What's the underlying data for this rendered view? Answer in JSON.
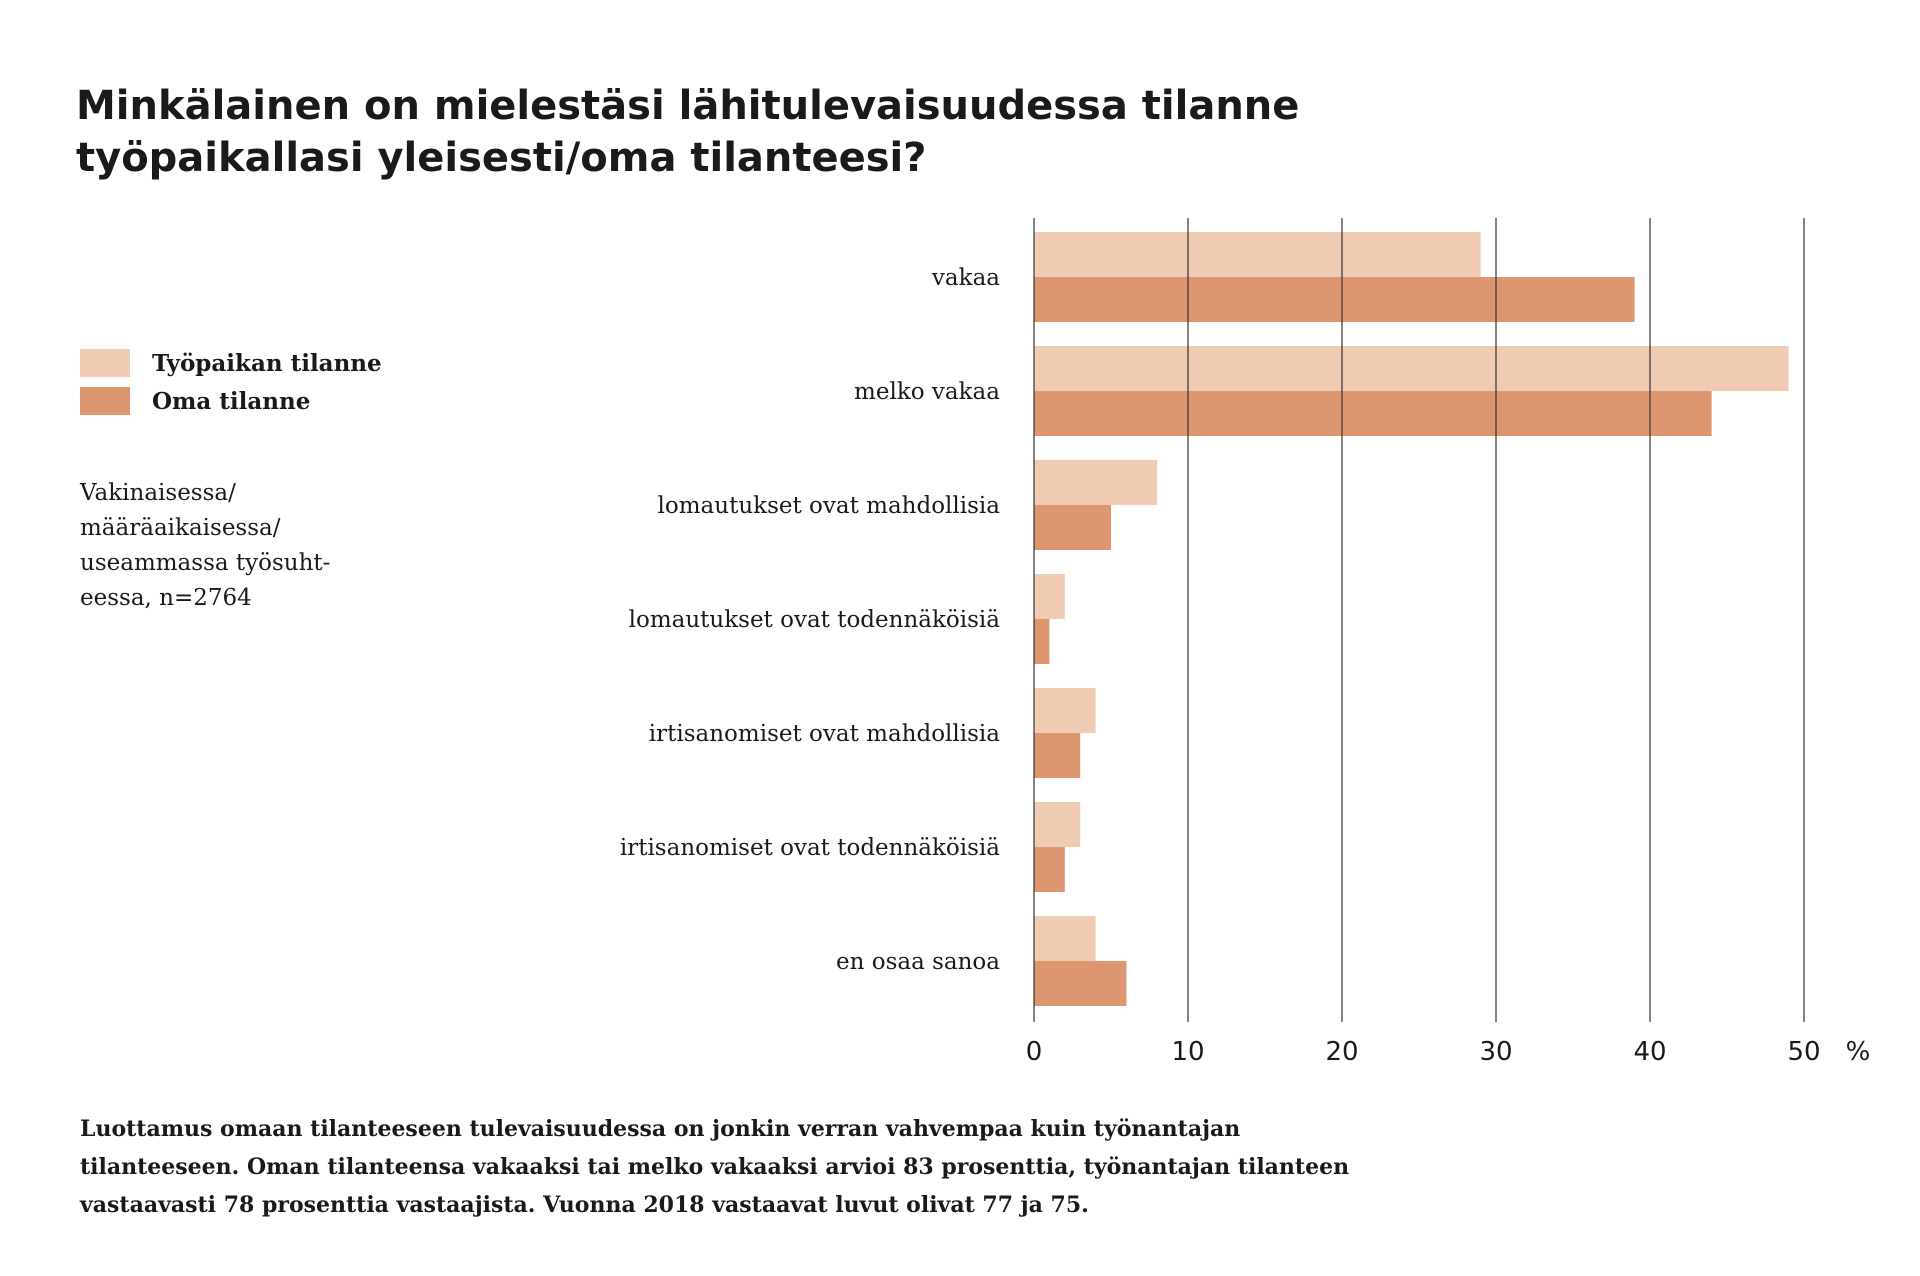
{
  "title": "Minkälainen on mielestäsi lähitulevaisuudessa tilanne työpaikallasi yleisesti/oma tilanteesi?",
  "legend": [
    {
      "label": "Työpaikan tilanne",
      "color": "#efcbb3"
    },
    {
      "label": "Oma tilanne",
      "color": "#de9670"
    }
  ],
  "note": "Vakinaisessa/ määräaikaisessa/ useammassa työsuht- eessa, n=2764",
  "footer": "Luottamus omaan tilanteeseen tulevaisuudessa on jonkin verran vahvempaa kuin työnantajan tilanteeseen. Oman tilanteensa vakaaksi tai melko vakaaksi arvioi 83 prosenttia, työnantajan tilanteen vastaavasti 78 prosenttia vastaajista. Vuonna 2018 vastaavat luvut olivat 77 ja 75.",
  "chart_data": {
    "type": "bar",
    "orientation": "horizontal",
    "categories": [
      "vakaa",
      "melko vakaa",
      "lomautukset ovat mahdollisia",
      "lomautukset ovat todennäköisiä",
      "irtisanomiset ovat mahdollisia",
      "irtisanomiset ovat todennäköisiä",
      "en osaa sanoa"
    ],
    "series": [
      {
        "name": "Työpaikan tilanne",
        "color": "#efcbb3",
        "values": [
          29,
          49,
          8,
          2,
          4,
          3,
          4
        ]
      },
      {
        "name": "Oma tilanne",
        "color": "#de9670",
        "values": [
          39,
          44,
          5,
          1,
          3,
          2,
          6
        ]
      }
    ],
    "xlim": [
      0,
      50
    ],
    "ticks": [
      "0",
      "10",
      "20",
      "30",
      "40",
      "50"
    ],
    "unit": "%",
    "grid": true
  }
}
